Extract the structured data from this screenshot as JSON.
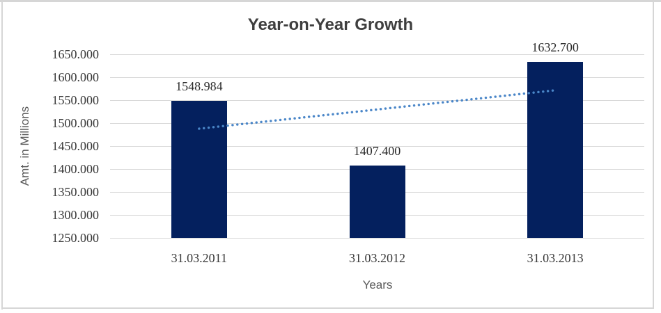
{
  "chart_data": {
    "type": "bar",
    "title": "Year-on-Year Growth",
    "xlabel": "Years",
    "ylabel": "Amt. in Millions",
    "categories": [
      "31.03.2011",
      "31.03.2012",
      "31.03.2013"
    ],
    "values": [
      1548.984,
      1407.4,
      1632.7
    ],
    "data_labels": [
      "1548.984",
      "1407.400",
      "1632.700"
    ],
    "ylim": [
      1250,
      1650
    ],
    "ytick_step": 50,
    "ytick_labels": [
      "1250.000",
      "1300.000",
      "1350.000",
      "1400.000",
      "1450.000",
      "1500.000",
      "1550.000",
      "1600.000",
      "1650.000"
    ],
    "grid": true,
    "legend": "none",
    "bar_color": "#04205e",
    "grid_color": "#d9d9d9",
    "trendline": {
      "type": "linear",
      "style": "dotted",
      "color": "#4a86c8",
      "y_start": 1487.84,
      "y_end": 1571.55
    }
  }
}
